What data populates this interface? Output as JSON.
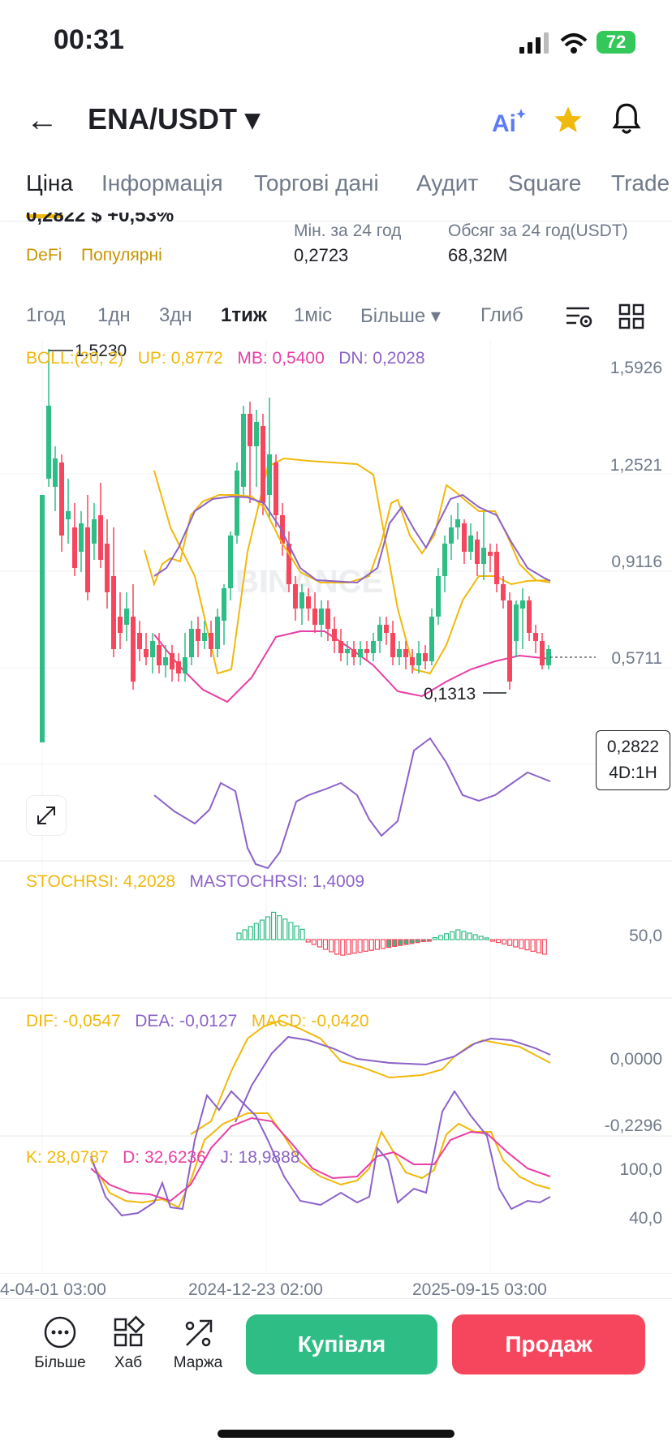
{
  "status": {
    "time": "00:31",
    "battery": "72"
  },
  "header": {
    "pair": "ENA/USDT"
  },
  "tabs": [
    "Ціна",
    "Інформація",
    "Торгові дані",
    "Аудит",
    "Square",
    "Trade"
  ],
  "info": {
    "price_partial": "0,2822 $  +0,53%",
    "tags": [
      "DeFi",
      "Популярні"
    ],
    "low_label": "Мін. за 24 год",
    "low_value": "0,2723",
    "vol_label": "Обсяг за 24 год(USDT)",
    "vol_value": "68,32M"
  },
  "intervals": [
    "1год",
    "1дн",
    "3дн",
    "1тиж",
    "1міс",
    "Більше",
    "Глиб"
  ],
  "active_interval": "1тиж",
  "boll": {
    "label": "BOLL:(20, 2)",
    "up": "UP: 0,8772",
    "mb": "MB: 0,5400",
    "dn": "DN: 0,2028"
  },
  "price_axis": [
    "1,5926",
    "1,2521",
    "0,9116",
    "0,5711"
  ],
  "high_marker": "1,5230",
  "low_marker": "0,1313",
  "current_price": "0,2822",
  "countdown": "4D:1H",
  "watermark": "BINANCE",
  "stochrsi": {
    "k": "STOCHRSI: 4,2028",
    "ma": "MASTOCHRSI: 1,4009",
    "axis": "50,0"
  },
  "macd": {
    "dif": "DIF: -0,0547",
    "dea": "DEA: -0,0127",
    "macd": "MACD: -0,0420",
    "axis_top": "0,0000",
    "axis_bottom": "-0,2296"
  },
  "kdj": {
    "k": "K: 28,0787",
    "d": "D: 32,6236",
    "j": "J: 18,9888",
    "axis_top": "100,0",
    "axis_mid": "40,0"
  },
  "dates": [
    "4-04-01 03:00",
    "2024-12-23 02:00",
    "2025-09-15 03:00"
  ],
  "bottom": {
    "more": "Більше",
    "hub": "Хаб",
    "margin": "Маржа",
    "buy": "Купівля",
    "sell": "Продаж"
  },
  "colors": {
    "up": "#2ebd85",
    "down": "#f6465d",
    "boll_up": "#f0b90b",
    "boll_mb": "#e83ea5",
    "boll_dn": "#8c62c8",
    "accent": "#f0b90b"
  }
}
